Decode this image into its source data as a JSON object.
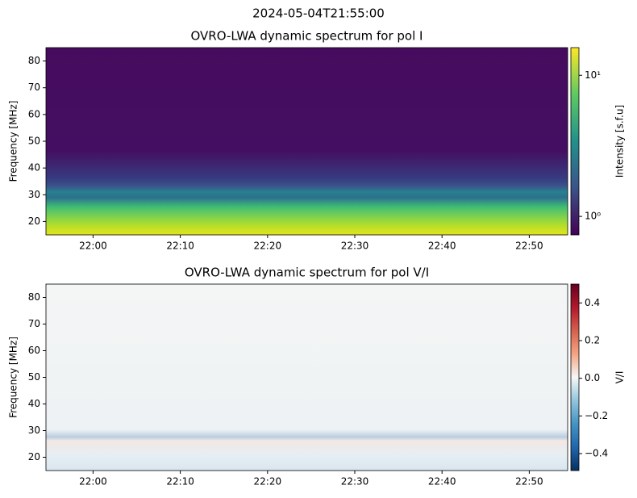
{
  "suptitle": "2024-05-04T21:55:00",
  "chart_data": [
    {
      "type": "heatmap",
      "title": "OVRO-LWA dynamic spectrum for pol I",
      "ylabel": "Frequency [MHz]",
      "xlim": [
        1314.6,
        1374.4
      ],
      "xticks": [
        {
          "value": 1320,
          "label": "22:00"
        },
        {
          "value": 1330,
          "label": "22:10"
        },
        {
          "value": 1340,
          "label": "22:20"
        },
        {
          "value": 1350,
          "label": "22:30"
        },
        {
          "value": 1360,
          "label": "22:40"
        },
        {
          "value": 1370,
          "label": "22:50"
        }
      ],
      "ylim": [
        15,
        85
      ],
      "yticks": [
        20,
        30,
        40,
        50,
        60,
        70,
        80
      ],
      "colorbar": {
        "label": "Intensity [s.f.u]",
        "scale": "log",
        "colormap": "viridis",
        "lim": [
          0.74,
          15.7
        ],
        "ticks": [
          {
            "value": 1,
            "label": "10⁰"
          },
          {
            "value": 10,
            "label": "10¹"
          }
        ]
      }
    },
    {
      "type": "heatmap",
      "title": "OVRO-LWA dynamic spectrum for pol V/I",
      "ylabel": "Frequency [MHz]",
      "xlim": [
        1314.6,
        1374.4
      ],
      "xticks": [
        {
          "value": 1320,
          "label": "22:00"
        },
        {
          "value": 1330,
          "label": "22:10"
        },
        {
          "value": 1340,
          "label": "22:20"
        },
        {
          "value": 1350,
          "label": "22:30"
        },
        {
          "value": 1360,
          "label": "22:40"
        },
        {
          "value": 1370,
          "label": "22:50"
        }
      ],
      "ylim": [
        15,
        85
      ],
      "yticks": [
        20,
        30,
        40,
        50,
        60,
        70,
        80
      ],
      "colorbar": {
        "label": "V/I",
        "scale": "linear",
        "colormap": "RdBu_r",
        "lim": [
          -0.49,
          0.5
        ],
        "ticks": [
          {
            "value": -0.4,
            "label": "−0.4"
          },
          {
            "value": -0.2,
            "label": "−0.2"
          },
          {
            "value": 0,
            "label": "0.0"
          },
          0.2,
          0.4
        ]
      }
    }
  ]
}
